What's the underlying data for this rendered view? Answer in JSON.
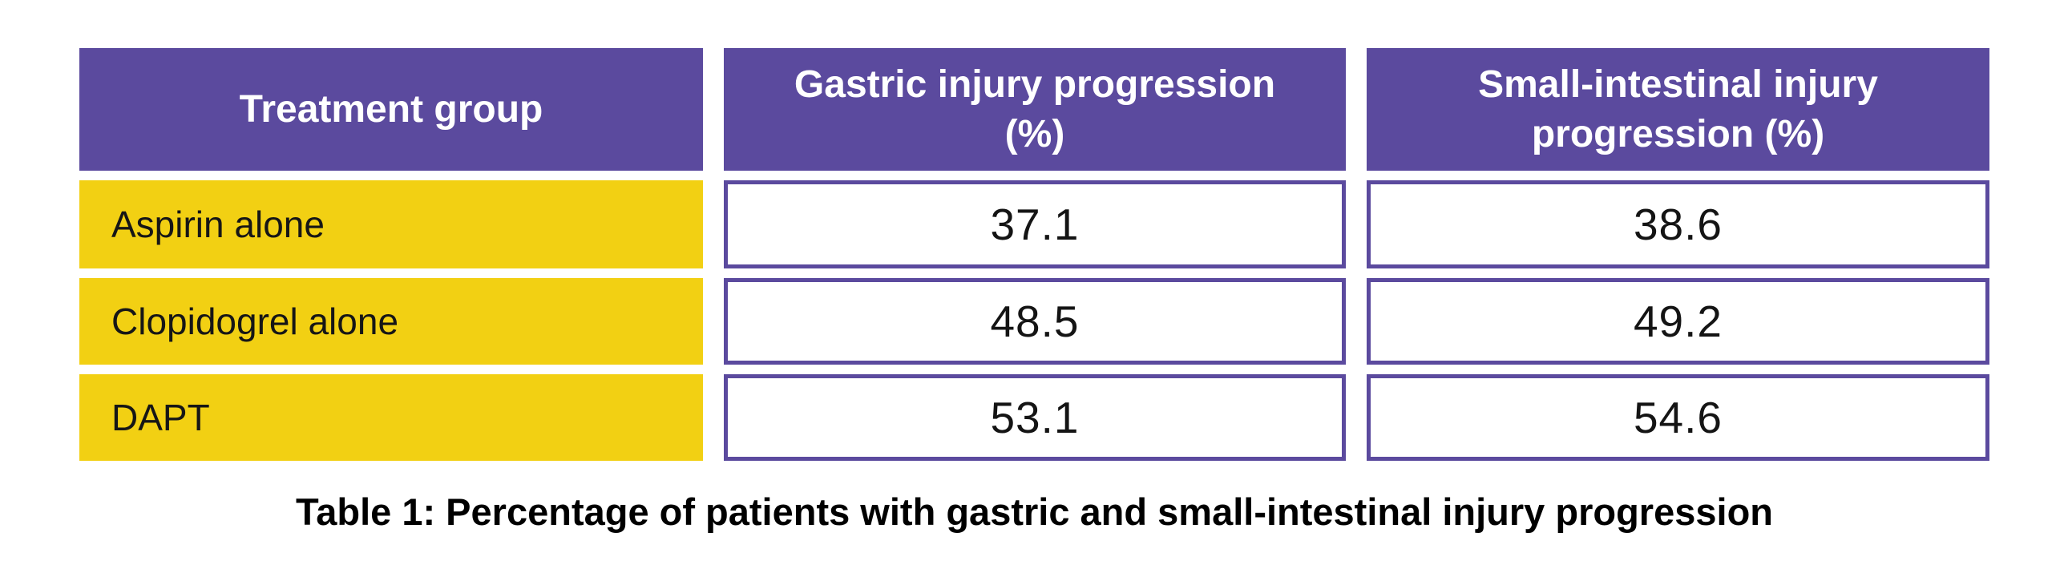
{
  "figure": {
    "caption": "Table 1: Percentage of patients with gastric and small-intestinal injury progression"
  },
  "table": {
    "headers": [
      "Treatment group",
      "Gastric injury progression (%)",
      "Small-intestinal injury progression (%)"
    ],
    "rows": [
      {
        "group": "Aspirin alone",
        "gastric": "37.1",
        "small_intestinal": "38.6"
      },
      {
        "group": "Clopidogrel alone",
        "gastric": "48.5",
        "small_intestinal": "49.2"
      },
      {
        "group": "DAPT",
        "gastric": "53.1",
        "small_intestinal": "54.6"
      }
    ]
  },
  "chart_data": {
    "type": "table",
    "title": "Table 1: Percentage of patients with gastric and small-intestinal injury progression",
    "columns": [
      "Treatment group",
      "Gastric injury progression (%)",
      "Small-intestinal injury progression (%)"
    ],
    "rows": [
      [
        "Aspirin alone",
        37.1,
        38.6
      ],
      [
        "Clopidogrel alone",
        48.5,
        49.2
      ],
      [
        "DAPT",
        53.1,
        54.6
      ]
    ]
  },
  "colors": {
    "header_bg": "#5b4a9e",
    "header_text": "#ffffff",
    "row_label_bg": "#f2d013",
    "cell_border": "#5b4a9e",
    "body_text": "#141414",
    "caption_text": "#000000",
    "background": "#ffffff"
  }
}
